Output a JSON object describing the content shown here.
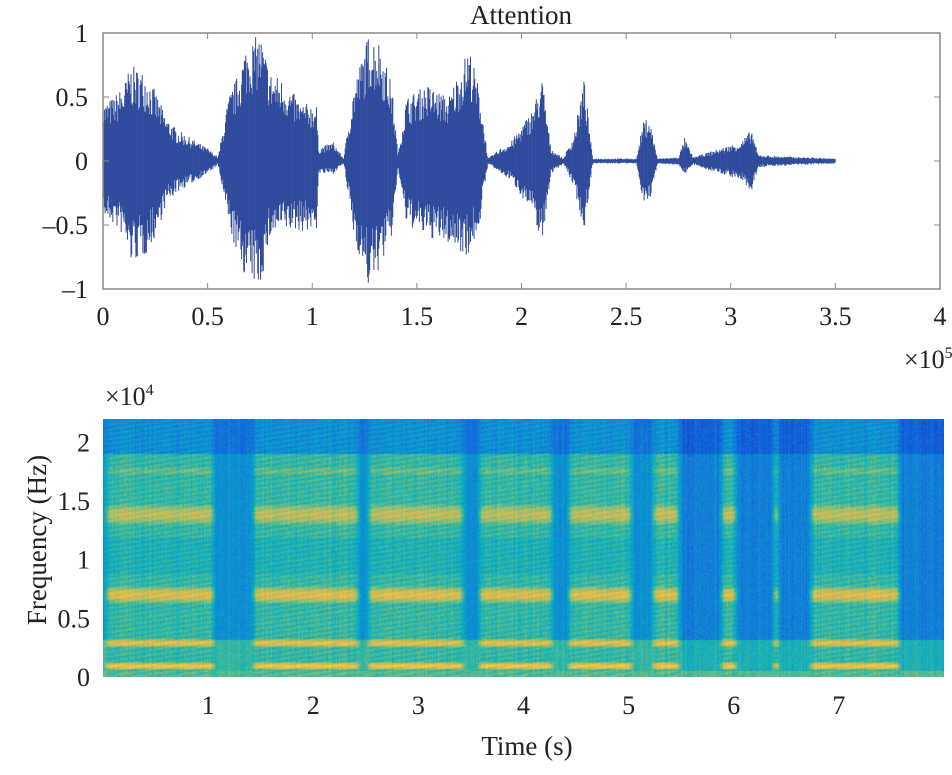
{
  "chart_data": [
    {
      "type": "line",
      "title": "Attention",
      "xlabel": "",
      "ylabel": "",
      "x_multiplier": "×10",
      "x_multiplier_exp": "5",
      "xlim": [
        0,
        4
      ],
      "ylim": [
        -1,
        1
      ],
      "xticks": [
        "0",
        "0.5",
        "1",
        "1.5",
        "2",
        "2.5",
        "3",
        "3.5",
        "4"
      ],
      "yticks": [
        "1",
        "0.5",
        "0",
        "–0.5",
        "–1"
      ],
      "color": "#2f4b9c",
      "envelope": {
        "x": [
          0,
          0.05,
          0.1,
          0.13,
          0.2,
          0.25,
          0.3,
          0.35,
          0.45,
          0.5,
          0.55,
          0.6,
          0.65,
          0.68,
          0.75,
          0.8,
          0.85,
          0.95,
          1.02,
          1.03,
          1.1,
          1.15,
          1.2,
          1.27,
          1.32,
          1.38,
          1.41,
          1.45,
          1.55,
          1.65,
          1.75,
          1.8,
          1.84,
          1.9,
          1.95,
          2.05,
          2.1,
          2.14,
          2.2,
          2.25,
          2.3,
          2.34,
          2.55,
          2.58,
          2.61,
          2.65,
          2.75,
          2.78,
          2.82,
          2.95,
          3.05,
          3.1,
          3.13,
          3.2,
          3.5
        ],
        "upper": [
          0.45,
          0.5,
          0.6,
          0.75,
          0.7,
          0.55,
          0.35,
          0.25,
          0.15,
          0.1,
          0.03,
          0.5,
          0.7,
          0.9,
          1.0,
          0.7,
          0.65,
          0.45,
          0.45,
          0.1,
          0.15,
          0.02,
          0.6,
          1.0,
          0.95,
          0.6,
          0.05,
          0.5,
          0.6,
          0.5,
          0.9,
          0.55,
          0.02,
          0.1,
          0.15,
          0.4,
          0.65,
          0.1,
          0.02,
          0.2,
          0.65,
          0.02,
          0.02,
          0.3,
          0.35,
          0.02,
          0.03,
          0.18,
          0.03,
          0.1,
          0.15,
          0.25,
          0.05,
          0.04,
          0.02
        ],
        "lower": [
          -0.45,
          -0.5,
          -0.6,
          -0.8,
          -0.75,
          -0.6,
          -0.35,
          -0.25,
          -0.15,
          -0.1,
          -0.03,
          -0.5,
          -0.8,
          -0.9,
          -1.0,
          -0.6,
          -0.55,
          -0.55,
          -0.55,
          -0.1,
          -0.1,
          -0.02,
          -0.6,
          -1.0,
          -0.85,
          -0.6,
          -0.05,
          -0.5,
          -0.6,
          -0.65,
          -0.75,
          -0.5,
          -0.02,
          -0.1,
          -0.15,
          -0.4,
          -0.65,
          -0.1,
          -0.02,
          -0.2,
          -0.55,
          -0.02,
          -0.02,
          -0.3,
          -0.35,
          -0.02,
          -0.03,
          -0.1,
          -0.03,
          -0.1,
          -0.15,
          -0.25,
          -0.05,
          -0.04,
          -0.02
        ]
      }
    },
    {
      "type": "heatmap",
      "xlabel": "Time (s)",
      "ylabel": "Frequency (Hz)",
      "y_multiplier": "×10",
      "y_multiplier_exp": "4",
      "xlim": [
        0,
        8
      ],
      "ylim": [
        0,
        2.2
      ],
      "xticks": [
        "1",
        "2",
        "3",
        "4",
        "5",
        "6",
        "7"
      ],
      "yticks": [
        "2",
        "1.5",
        "1",
        "0.5",
        "0"
      ],
      "colormap": "parula",
      "voiced_segments_s": [
        [
          0,
          1.08
        ],
        [
          1.4,
          2.45
        ],
        [
          2.5,
          3.45
        ],
        [
          3.55,
          4.3
        ],
        [
          4.4,
          5.05
        ],
        [
          5.2,
          5.5
        ],
        [
          5.85,
          6.05
        ],
        [
          6.35,
          6.45
        ],
        [
          6.7,
          7.6
        ]
      ]
    }
  ]
}
